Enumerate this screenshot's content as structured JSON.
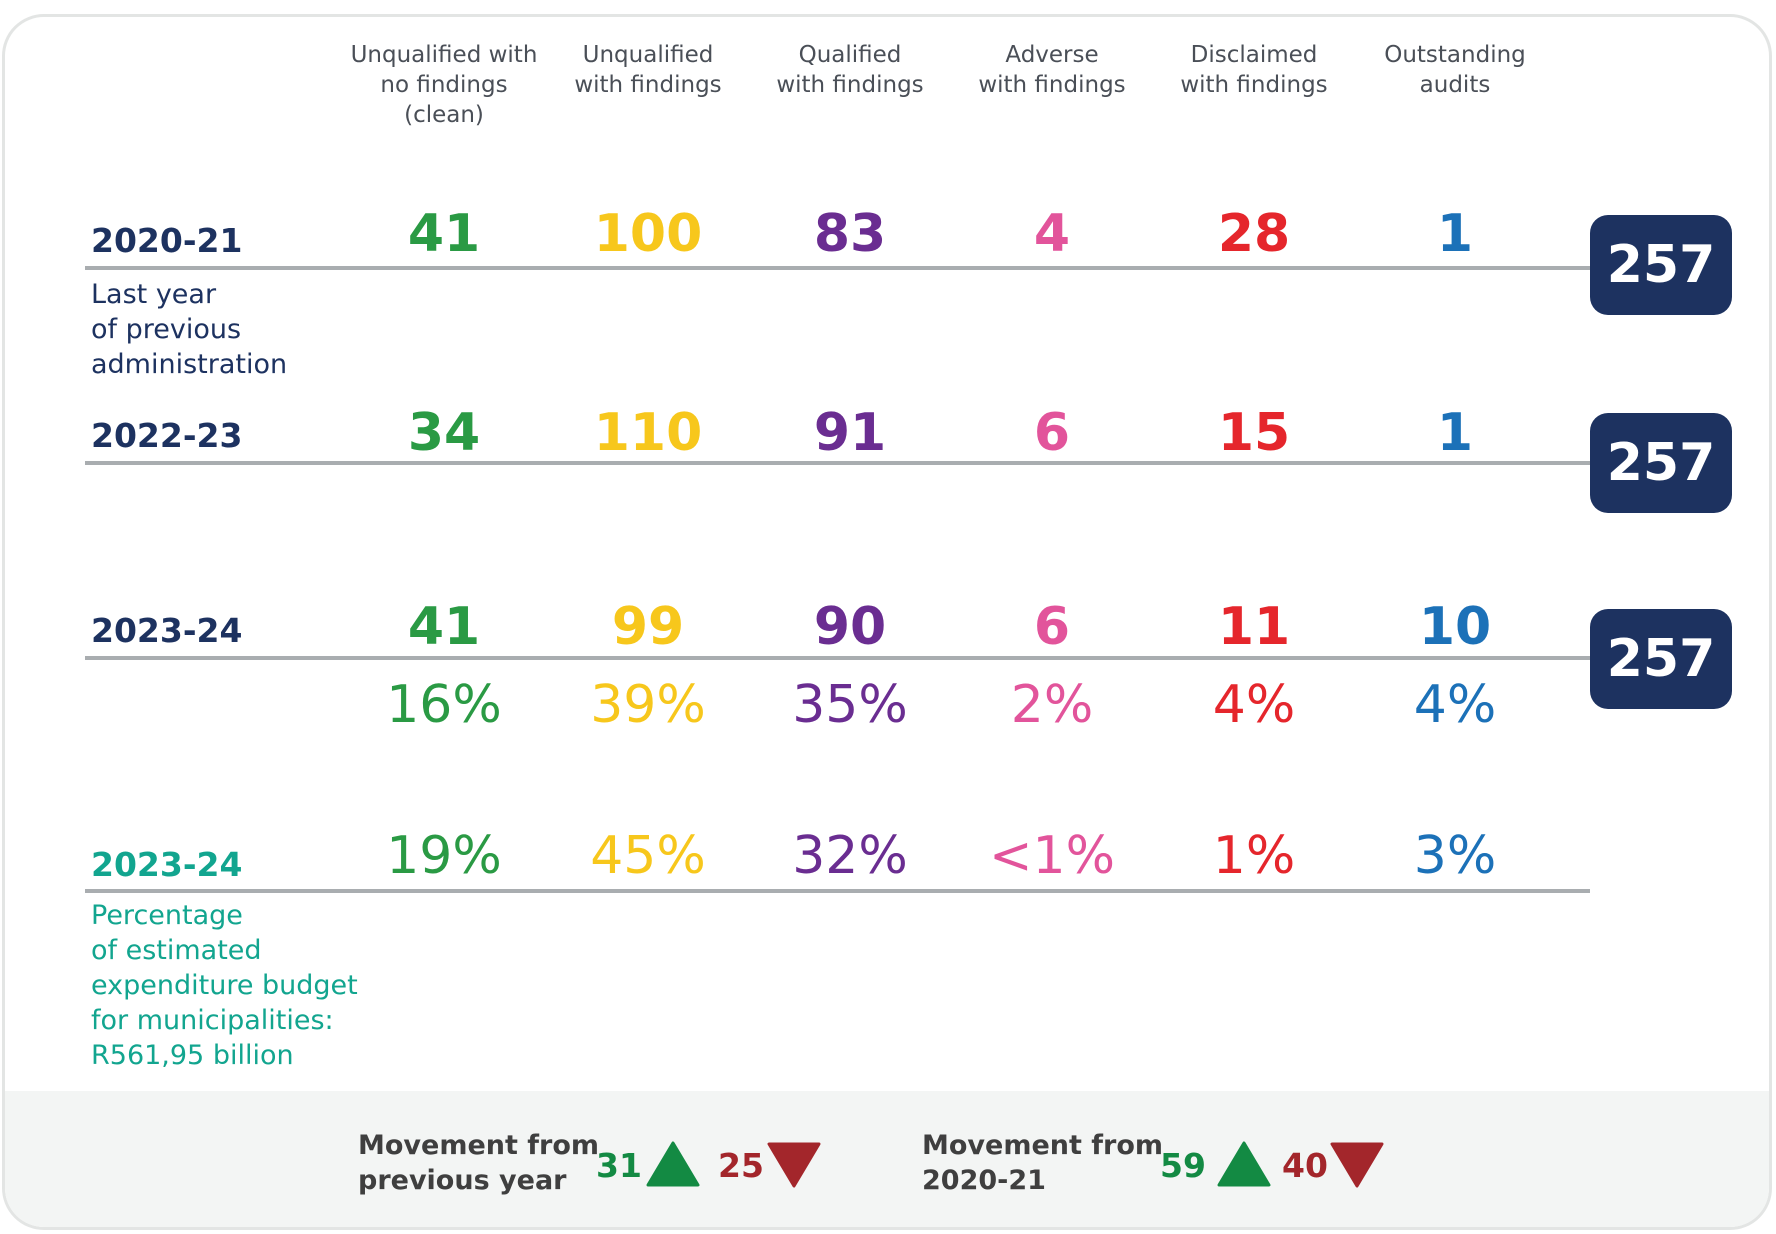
{
  "colors": {
    "clean": "#2a9a44",
    "unqualified": "#f7c71c",
    "qualified": "#6a2d91",
    "adverse": "#e2549b",
    "disclaimed": "#e5262c",
    "outstanding": "#1c71b8",
    "navy": "#1d3260",
    "teal": "#12a58f",
    "up_green": "#138a43",
    "down_red": "#a3262b"
  },
  "columns": [
    "Unqualified with\nno findings\n(clean)",
    "Unqualified\nwith findings",
    "Qualified\nwith findings",
    "Adverse\nwith findings",
    "Disclaimed\nwith findings",
    "Outstanding\naudits"
  ],
  "rows": [
    {
      "year": "2020-21",
      "subtitle": "Last year\nof previous\nadministration",
      "values": [
        "41",
        "100",
        "83",
        "4",
        "28",
        "1"
      ],
      "total": "257"
    },
    {
      "year": "2022-23",
      "values": [
        "34",
        "110",
        "91",
        "6",
        "15",
        "1"
      ],
      "total": "257"
    },
    {
      "year": "2023-24",
      "values": [
        "41",
        "99",
        "90",
        "6",
        "11",
        "10"
      ],
      "percentages": [
        "16%",
        "39%",
        "35%",
        "2%",
        "4%",
        "4%"
      ],
      "total": "257"
    }
  ],
  "budget_row": {
    "year": "2023-24",
    "subtitle": "Percentage\nof estimated\nexpenditure budget\nfor municipalities:\nR561,95 billion",
    "percentages": [
      "19%",
      "45%",
      "32%",
      "<1%",
      "1%",
      "3%"
    ]
  },
  "movement": {
    "previous_year": {
      "label": "Movement from\nprevious year",
      "improved": "31",
      "regressed": "25",
      "up_icon": "triangle-up-icon",
      "down_icon": "triangle-down-icon"
    },
    "since_2020": {
      "label": "Movement from\n2020-21",
      "improved": "59",
      "regressed": "40",
      "up_icon": "triangle-up-icon",
      "down_icon": "triangle-down-icon"
    }
  }
}
